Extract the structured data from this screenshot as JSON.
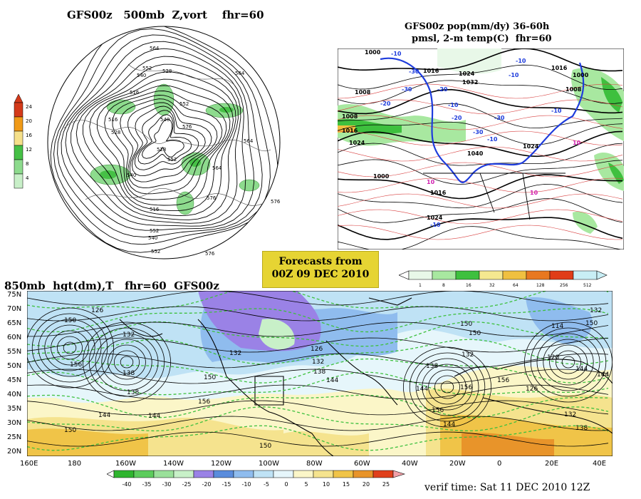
{
  "vort_panel": {
    "title": "GFS00z   500mb  Z,vort    fhr=60",
    "scale_ticks": [
      "24",
      "20",
      "16",
      "12",
      "8",
      "4"
    ],
    "scale_colors": [
      "#d43a1a",
      "#f09a18",
      "#f5e08a",
      "#46c046",
      "#8ddb8d",
      "#c8efc8"
    ],
    "height_labels": [
      "564",
      "552",
      "540",
      "528",
      "516",
      "564",
      "552",
      "564",
      "576",
      "576",
      "552",
      "540",
      "516",
      "528",
      "540",
      "552",
      "564",
      "576",
      "516",
      "528",
      "540",
      "552",
      "576"
    ]
  },
  "pop_panel": {
    "title_line1": "GFS00z pop(mm/dy) 36-60h",
    "title_line2": "pmsl, 2-m temp(C)  fhr=60",
    "pressure_labels": [
      "1000",
      "1008",
      "1016",
      "1024",
      "1000",
      "1008",
      "1016",
      "1024",
      "1032",
      "1040",
      "1024",
      "1016",
      "1008",
      "1000",
      "1016",
      "1024"
    ],
    "temp_labels": [
      "-10",
      "-30",
      "-20",
      "-10",
      "-20",
      "-30",
      "-10",
      "-30",
      "-10",
      "-10",
      "10",
      "10",
      "10",
      "-10",
      "-20",
      "-30",
      "-10"
    ],
    "legend_labels": [
      "1",
      "8",
      "16",
      "32",
      "64",
      "128",
      "256",
      "512"
    ],
    "legend_colors": [
      "#e8f8e8",
      "#a8e8a0",
      "#3ec03e",
      "#f5e890",
      "#f0c040",
      "#e87820",
      "#e03c18",
      "#c8eef5"
    ]
  },
  "forecast_box": {
    "line1": "Forecasts from",
    "line2": "00Z  09  DEC  2010"
  },
  "hgt_panel": {
    "title": "850mb  hgt(dm),T   fhr=60  GFS00z",
    "lat_labels": [
      "75N",
      "70N",
      "65N",
      "60N",
      "55N",
      "50N",
      "45N",
      "40N",
      "35N",
      "30N",
      "25N",
      "20N"
    ],
    "lon_labels": [
      "160E",
      "180",
      "160W",
      "140W",
      "120W",
      "100W",
      "80W",
      "60W",
      "40W",
      "20W",
      "0",
      "20E",
      "40E"
    ],
    "height_labels": [
      "150",
      "156",
      "138",
      "132",
      "126",
      "144",
      "138",
      "144",
      "150",
      "156",
      "150",
      "132",
      "126",
      "132",
      "138",
      "144",
      "150",
      "156",
      "144",
      "150",
      "132",
      "138",
      "144",
      "156",
      "150",
      "132",
      "114",
      "120",
      "126",
      "132",
      "138",
      "144",
      "150",
      "156",
      "144"
    ],
    "temp_scale_labels": [
      "-40",
      "-35",
      "-30",
      "-25",
      "-20",
      "-15",
      "-10",
      "-5",
      "0",
      "5",
      "10",
      "15",
      "20",
      "25"
    ],
    "temp_scale_colors": [
      "#2fb52f",
      "#5ccc5c",
      "#9ae09a",
      "#c8f0c8",
      "#9a82e6",
      "#5a8cdc",
      "#8fbcee",
      "#bfe2f5",
      "#e6f6fb",
      "#fbf6c8",
      "#f5e38e",
      "#f0c448",
      "#e8942a",
      "#e0401c",
      "#f2a0a8"
    ],
    "verif_time": "verif time: Sat 11 DEC 2010 12Z"
  }
}
